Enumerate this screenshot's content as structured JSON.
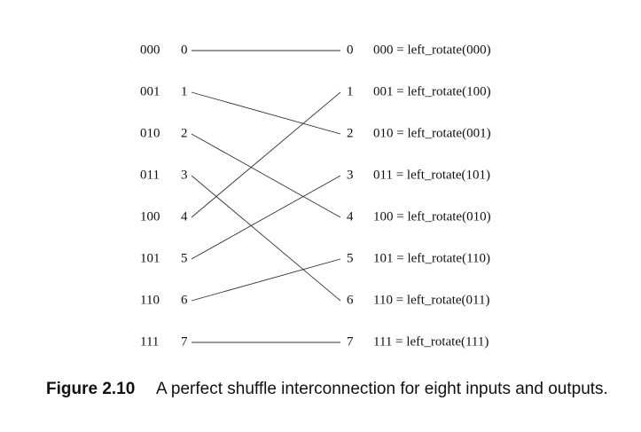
{
  "inputs": [
    {
      "binary": "000",
      "index": "0"
    },
    {
      "binary": "001",
      "index": "1"
    },
    {
      "binary": "010",
      "index": "2"
    },
    {
      "binary": "011",
      "index": "3"
    },
    {
      "binary": "100",
      "index": "4"
    },
    {
      "binary": "101",
      "index": "5"
    },
    {
      "binary": "110",
      "index": "6"
    },
    {
      "binary": "111",
      "index": "7"
    }
  ],
  "outputs": [
    {
      "index": "0",
      "formula": "000 = left_rotate(000)"
    },
    {
      "index": "1",
      "formula": "001 = left_rotate(100)"
    },
    {
      "index": "2",
      "formula": "010 = left_rotate(001)"
    },
    {
      "index": "3",
      "formula": "011 = left_rotate(101)"
    },
    {
      "index": "4",
      "formula": "100 = left_rotate(010)"
    },
    {
      "index": "5",
      "formula": "101 = left_rotate(110)"
    },
    {
      "index": "6",
      "formula": "110 = left_rotate(011)"
    },
    {
      "index": "7",
      "formula": "111 = left_rotate(111)"
    }
  ],
  "connections": [
    {
      "from": 0,
      "to": 0
    },
    {
      "from": 1,
      "to": 2
    },
    {
      "from": 2,
      "to": 4
    },
    {
      "from": 3,
      "to": 6
    },
    {
      "from": 4,
      "to": 1
    },
    {
      "from": 5,
      "to": 3
    },
    {
      "from": 6,
      "to": 5
    },
    {
      "from": 7,
      "to": 7
    }
  ],
  "caption": {
    "label": "Figure 2.10",
    "text": "A perfect shuffle interconnection for eight inputs and outputs."
  }
}
